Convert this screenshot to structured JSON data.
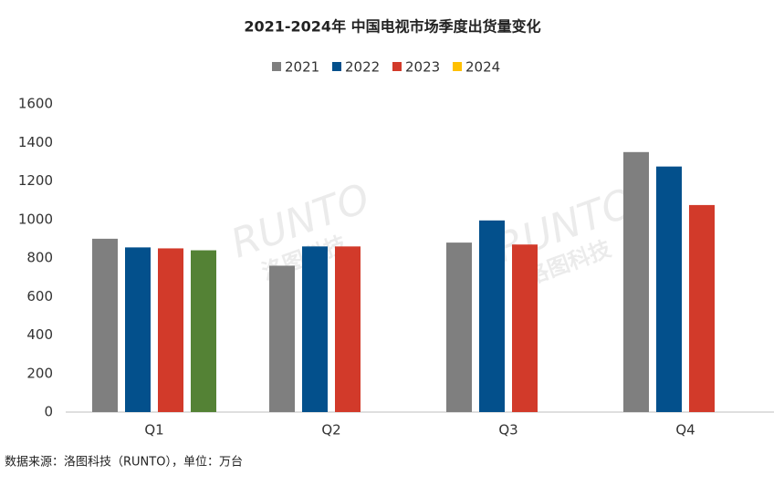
{
  "chart_data": {
    "type": "bar",
    "title": "2021-2024年 中国电视市场季度出货量变化",
    "categories": [
      "Q1",
      "Q2",
      "Q3",
      "Q4"
    ],
    "series": [
      {
        "name": "2021",
        "color": "#7f7f7f",
        "values": [
          900,
          760,
          880,
          1350
        ]
      },
      {
        "name": "2022",
        "color": "#03508c",
        "values": [
          855,
          860,
          995,
          1275
        ]
      },
      {
        "name": "2023",
        "color": "#d23a2a",
        "values": [
          850,
          860,
          870,
          1075
        ]
      },
      {
        "name": "2024",
        "color": "#ffc000",
        "point_colors": [
          "#548235",
          null,
          null,
          null
        ],
        "values": [
          840,
          null,
          null,
          null
        ]
      }
    ],
    "ylim": [
      0,
      1600
    ],
    "yticks": [
      0,
      200,
      400,
      600,
      800,
      1000,
      1200,
      1400,
      1600
    ],
    "grid": false,
    "legend": "top",
    "watermark": [
      "RUNTO",
      "洛图科技"
    ],
    "source": "数据来源：洛图科技（RUNTO），单位：万台"
  }
}
